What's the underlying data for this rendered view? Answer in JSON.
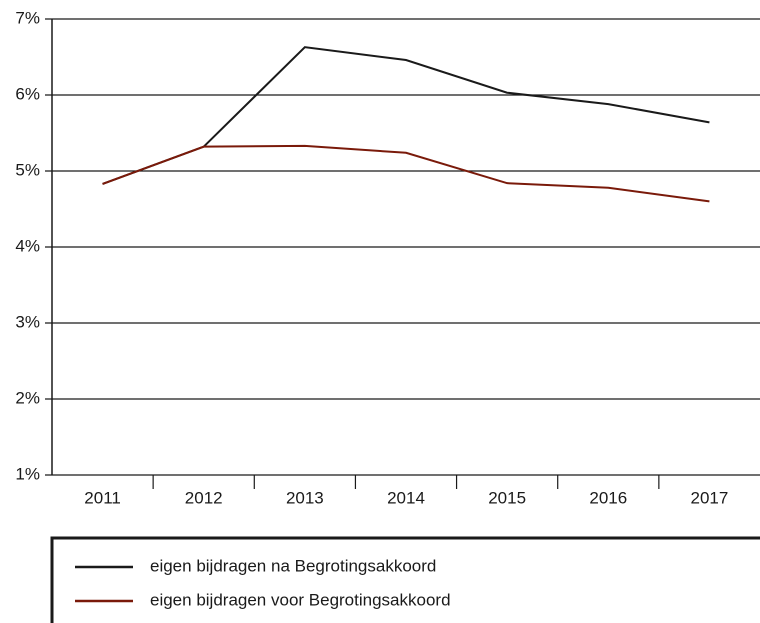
{
  "chart_data": {
    "type": "line",
    "categories": [
      "2011",
      "2012",
      "2013",
      "2014",
      "2015",
      "2016",
      "2017"
    ],
    "series": [
      {
        "name": "eigen bijdragen na Begrotingsakkoord",
        "color": "#1a1a1a",
        "values": [
          4.83,
          5.32,
          6.63,
          6.46,
          6.03,
          5.88,
          5.64
        ]
      },
      {
        "name": "eigen bijdragen voor Begrotingsakkoord",
        "color": "#7a1a0a",
        "values": [
          4.83,
          5.32,
          5.33,
          5.24,
          4.84,
          4.78,
          4.6
        ]
      }
    ],
    "ylim": [
      1,
      7
    ],
    "yticks": [
      {
        "value": 1,
        "label": "1%"
      },
      {
        "value": 2,
        "label": "2%"
      },
      {
        "value": 3,
        "label": "3%"
      },
      {
        "value": 4,
        "label": "4%"
      },
      {
        "value": 5,
        "label": "5%"
      },
      {
        "value": 6,
        "label": "6%"
      },
      {
        "value": 7,
        "label": "7%"
      }
    ],
    "grid": true
  }
}
